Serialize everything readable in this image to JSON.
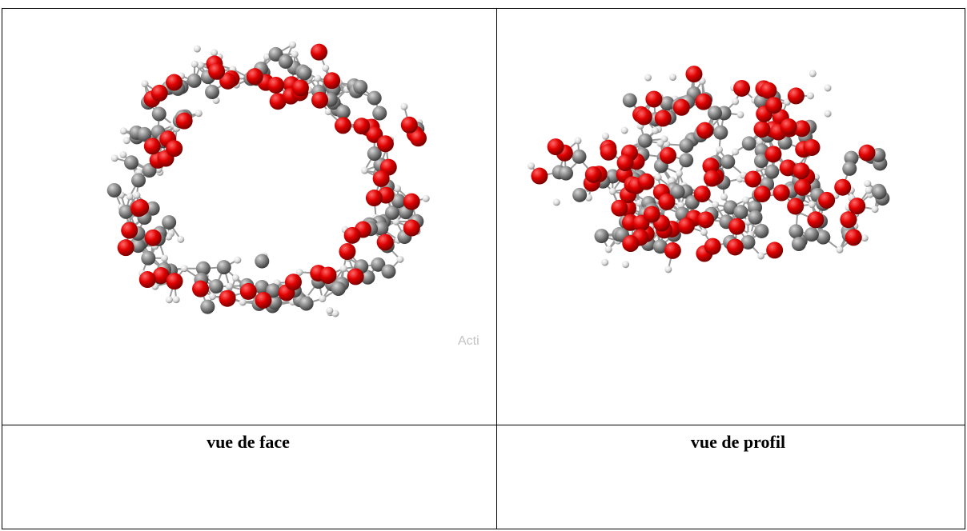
{
  "table": {
    "captions": [
      "vue de face",
      "vue de profil"
    ]
  },
  "watermark": "Acti"
}
